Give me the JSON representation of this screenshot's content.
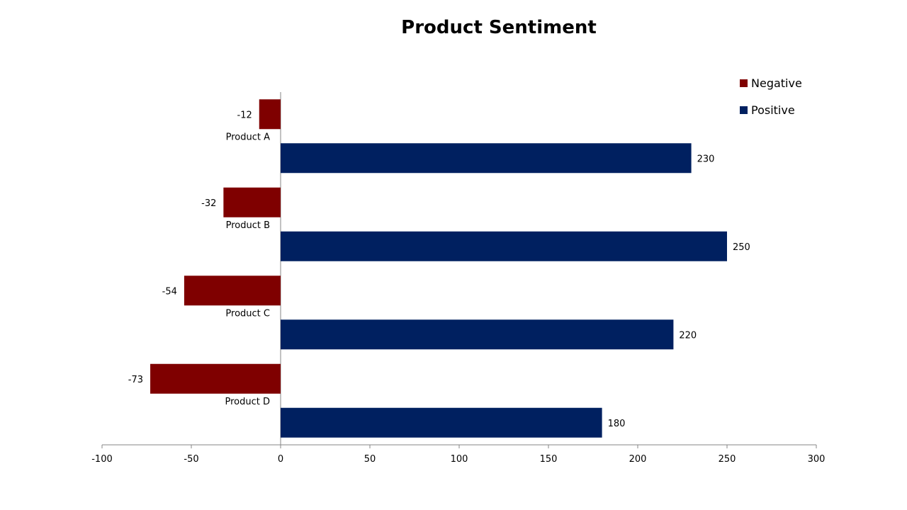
{
  "chart_data": {
    "type": "bar",
    "orientation": "horizontal",
    "title": "Product Sentiment",
    "xlabel": "",
    "ylabel": "",
    "categories": [
      "Product A",
      "Product B",
      "Product C",
      "Product D"
    ],
    "series": [
      {
        "name": "Negative",
        "color": "#7f0000",
        "values": [
          -12,
          -32,
          -54,
          -73
        ],
        "labels": [
          "-12",
          "-32",
          "-54",
          "-73"
        ]
      },
      {
        "name": "Positive",
        "color": "#002060",
        "values": [
          230,
          250,
          220,
          180
        ],
        "labels": [
          "230",
          "250",
          "220",
          "180"
        ]
      }
    ],
    "xlim": [
      -100,
      300
    ],
    "x_ticks": [
      -100,
      -50,
      0,
      50,
      100,
      150,
      200,
      250,
      300
    ],
    "x_tick_labels": [
      "-100",
      "-50",
      "0",
      "50",
      "100",
      "150",
      "200",
      "250",
      "300"
    ],
    "grid": false,
    "legend_position": "top-right"
  }
}
